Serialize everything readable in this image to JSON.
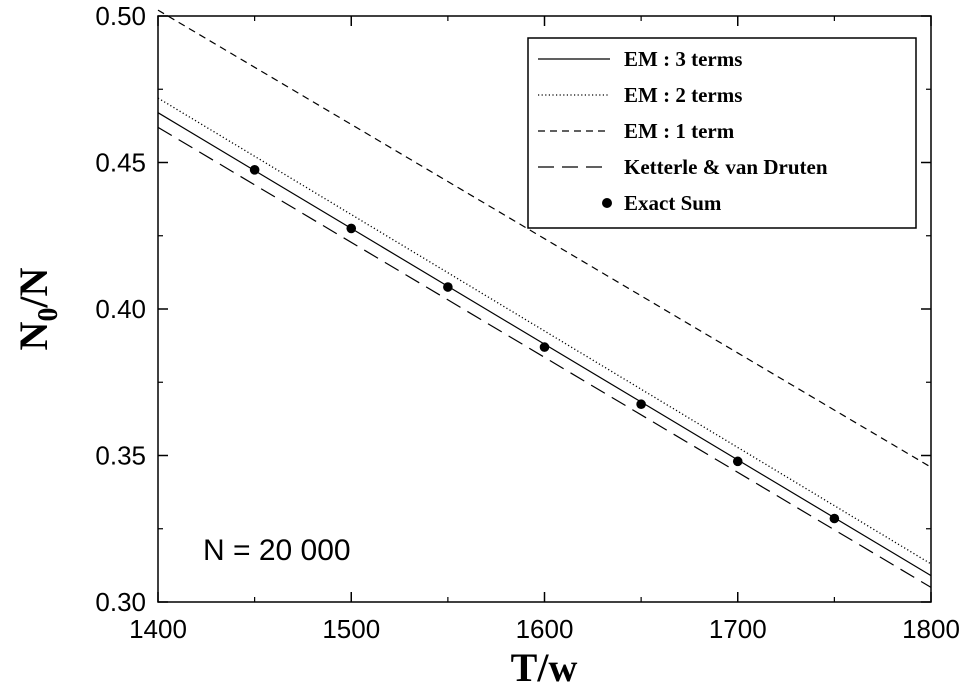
{
  "chart_data": {
    "type": "line",
    "xlabel": "T/w",
    "ylabel_main": "N",
    "ylabel_sub": "0",
    "ylabel_rest": "/N",
    "xlim": [
      1400,
      1800
    ],
    "ylim": [
      0.3,
      0.5
    ],
    "xticks": [
      1400,
      1500,
      1600,
      1700,
      1800
    ],
    "yticks": [
      "0.30",
      "0.35",
      "0.40",
      "0.45",
      "0.50"
    ],
    "grid": false,
    "legend_position": "top-right",
    "annotation": "N = 20 000",
    "series": [
      {
        "name": "EM : 3 terms",
        "style": "solid",
        "x": [
          1400,
          1800
        ],
        "y": [
          0.467,
          0.309
        ]
      },
      {
        "name": "EM : 2 terms",
        "style": "dotted",
        "x": [
          1400,
          1800
        ],
        "y": [
          0.472,
          0.313
        ]
      },
      {
        "name": "EM : 1 term",
        "style": "short-dash",
        "x": [
          1400,
          1800
        ],
        "y": [
          0.502,
          0.346
        ]
      },
      {
        "name": "Ketterle & van Druten",
        "style": "long-dash",
        "x": [
          1400,
          1800
        ],
        "y": [
          0.462,
          0.305
        ]
      },
      {
        "name": "Exact Sum",
        "style": "points",
        "x": [
          1450,
          1500,
          1550,
          1600,
          1650,
          1700,
          1750
        ],
        "y": [
          0.4475,
          0.4275,
          0.4075,
          0.387,
          0.3675,
          0.348,
          0.3285
        ]
      }
    ]
  }
}
